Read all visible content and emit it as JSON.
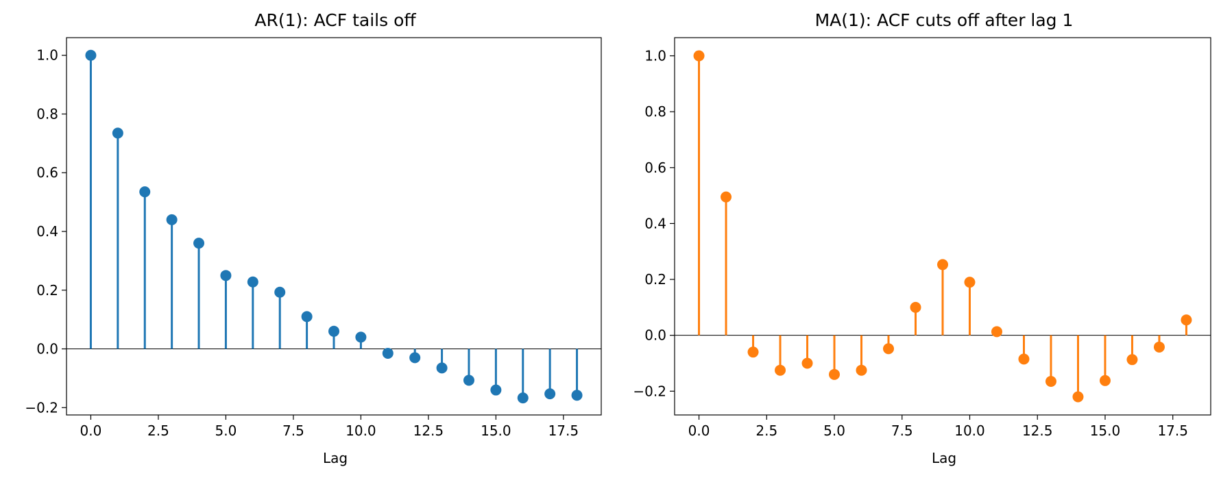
{
  "chart_data": [
    {
      "type": "stem",
      "title": "AR(1): ACF tails off",
      "xlabel": "Lag",
      "ylabel": "",
      "color": "#1f77b4",
      "x": [
        0,
        1,
        2,
        3,
        4,
        5,
        6,
        7,
        8,
        9,
        10,
        11,
        12,
        13,
        14,
        15,
        16,
        17,
        18
      ],
      "values": [
        1.0,
        0.735,
        0.535,
        0.44,
        0.36,
        0.25,
        0.228,
        0.193,
        0.11,
        0.06,
        0.04,
        -0.015,
        -0.03,
        -0.065,
        -0.107,
        -0.14,
        -0.167,
        -0.153,
        -0.158
      ],
      "xlim": [
        -0.9,
        18.9
      ],
      "ylim": [
        -0.225,
        1.06
      ],
      "xticks": [
        0.0,
        2.5,
        5.0,
        7.5,
        10.0,
        12.5,
        15.0,
        17.5
      ],
      "xtick_labels": [
        "0.0",
        "2.5",
        "5.0",
        "7.5",
        "10.0",
        "12.5",
        "15.0",
        "17.5"
      ],
      "yticks": [
        -0.2,
        0.0,
        0.2,
        0.4,
        0.6,
        0.8,
        1.0
      ],
      "ytick_labels": [
        "−0.2",
        "0.0",
        "0.2",
        "0.4",
        "0.6",
        "0.8",
        "1.0"
      ],
      "grid": false,
      "baseline": 0
    },
    {
      "type": "stem",
      "title": "MA(1): ACF cuts off after lag 1",
      "xlabel": "Lag",
      "ylabel": "",
      "color": "#ff7f0e",
      "x": [
        0,
        1,
        2,
        3,
        4,
        5,
        6,
        7,
        8,
        9,
        10,
        11,
        12,
        13,
        14,
        15,
        16,
        17,
        18
      ],
      "values": [
        1.0,
        0.495,
        -0.06,
        -0.125,
        -0.1,
        -0.14,
        -0.125,
        -0.048,
        0.1,
        0.253,
        0.19,
        0.013,
        -0.085,
        -0.165,
        -0.22,
        -0.162,
        -0.087,
        -0.042,
        0.055
      ],
      "xlim": [
        -0.9,
        18.9
      ],
      "ylim": [
        -0.285,
        1.065
      ],
      "xticks": [
        0.0,
        2.5,
        5.0,
        7.5,
        10.0,
        12.5,
        15.0,
        17.5
      ],
      "xtick_labels": [
        "0.0",
        "2.5",
        "5.0",
        "7.5",
        "10.0",
        "12.5",
        "15.0",
        "17.5"
      ],
      "yticks": [
        -0.2,
        0.0,
        0.2,
        0.4,
        0.6,
        0.8,
        1.0
      ],
      "ytick_labels": [
        "−0.2",
        "0.0",
        "0.2",
        "0.4",
        "0.6",
        "0.8",
        "1.0"
      ],
      "grid": false,
      "baseline": 0
    }
  ]
}
